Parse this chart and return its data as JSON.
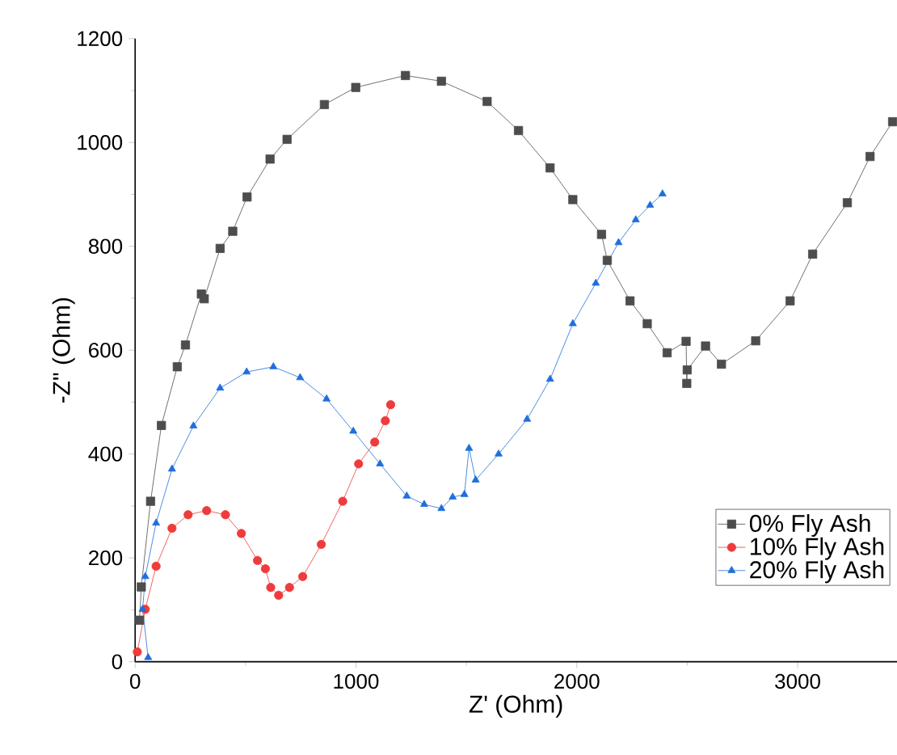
{
  "chart_data": {
    "type": "line",
    "xlabel": "Z' (Ohm)",
    "ylabel": "-Z\" (Ohm)",
    "xlim": [
      0,
      3450
    ],
    "ylim": [
      0,
      1200
    ],
    "xticks": [
      0,
      1000,
      2000,
      3000
    ],
    "yticks": [
      0,
      200,
      400,
      600,
      800,
      1000,
      1200
    ],
    "legend": "bottom right",
    "grid": false,
    "series": [
      {
        "name": "0% Fly Ash",
        "color": "#4d4d4d",
        "marker": "square",
        "x": [
          20,
          28,
          70,
          119,
          191,
          228,
          300,
          313,
          385,
          442,
          507,
          611,
          688,
          857,
          999,
          1224,
          1387,
          1594,
          1736,
          1879,
          1982,
          2112,
          2138,
          2241,
          2319,
          2409,
          2495,
          2498,
          2500,
          2583,
          2655,
          2810,
          2966,
          3068,
          3225,
          3328,
          3430
        ],
        "values": [
          80,
          144,
          309,
          455,
          568,
          610,
          708,
          699,
          796,
          829,
          895,
          968,
          1006,
          1073,
          1106,
          1129,
          1118,
          1079,
          1023,
          951,
          890,
          823,
          773,
          695,
          651,
          595,
          617,
          536,
          562,
          608,
          573,
          618,
          695,
          785,
          884,
          973,
          1040
        ]
      },
      {
        "name": "10% Fly Ash",
        "color": "#ef3b3b",
        "marker": "circle",
        "x": [
          10,
          46,
          95,
          167,
          240,
          324,
          409,
          481,
          554,
          590,
          614,
          650,
          699,
          759,
          843,
          940,
          1012,
          1085,
          1133,
          1157
        ],
        "values": [
          19,
          101,
          184,
          257,
          283,
          291,
          283,
          247,
          195,
          179,
          143,
          128,
          143,
          164,
          226,
          309,
          381,
          423,
          464,
          495
        ]
      },
      {
        "name": "20% Fly Ash",
        "color": "#1f6fdc",
        "marker": "triangle",
        "x": [
          59,
          34,
          46,
          95,
          167,
          264,
          385,
          505,
          626,
          747,
          867,
          988,
          1109,
          1230,
          1309,
          1387,
          1438,
          1491,
          1512,
          1542,
          1646,
          1775,
          1879,
          1982,
          2086,
          2189,
          2267,
          2332,
          2388
        ],
        "values": [
          8,
          101,
          164,
          267,
          371,
          454,
          527,
          558,
          568,
          547,
          506,
          444,
          381,
          319,
          303,
          295,
          317,
          322,
          411,
          350,
          400,
          467,
          544,
          651,
          729,
          807,
          851,
          879,
          901
        ]
      }
    ]
  }
}
